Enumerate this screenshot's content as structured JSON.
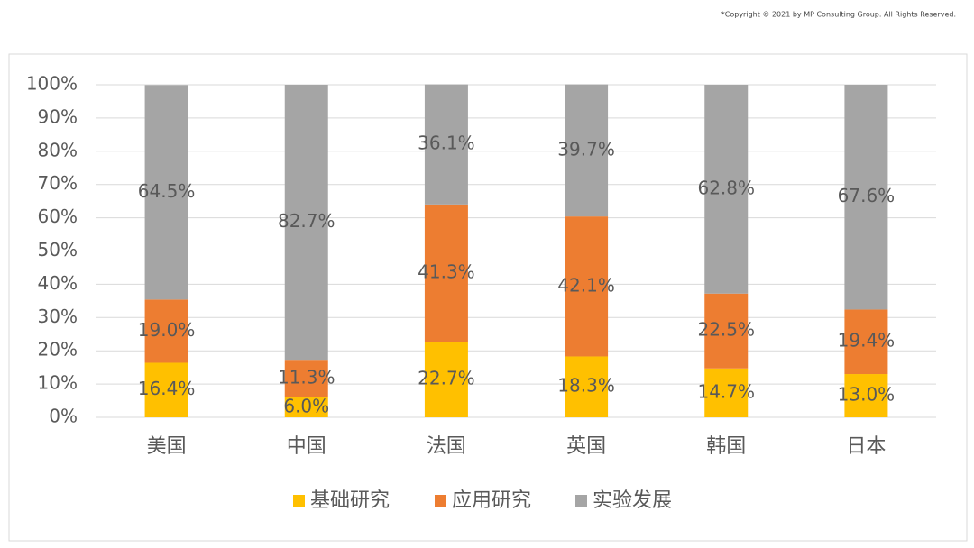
{
  "copyright": "*Copyright © 2021 by MP Consulting Group. All Rights Reserved.",
  "chart_data": {
    "type": "stacked_bar",
    "categories": [
      "美国",
      "中国",
      "法国",
      "英国",
      "韩国",
      "日本"
    ],
    "series": [
      {
        "name": "基础研究",
        "color": "#ffc000",
        "values": [
          16.4,
          6.0,
          22.7,
          18.3,
          14.7,
          13.0
        ],
        "value_labels": [
          "16.4%",
          "6.0%",
          "22.7%",
          "18.3%",
          "14.7%",
          "13.0%"
        ]
      },
      {
        "name": "应用研究",
        "color": "#ed7d31",
        "values": [
          19.0,
          11.3,
          41.3,
          42.1,
          22.5,
          19.4
        ],
        "value_labels": [
          "19.0%",
          "11.3%",
          "41.3%",
          "42.1%",
          "22.5%",
          "19.4%"
        ]
      },
      {
        "name": "实验发展",
        "color": "#a5a5a5",
        "values": [
          64.5,
          82.7,
          36.1,
          39.7,
          62.8,
          67.6
        ],
        "value_labels": [
          "64.5%",
          "82.7%",
          "36.1%",
          "39.7%",
          "62.8%",
          "67.6%"
        ]
      }
    ],
    "ylim": [
      0,
      100
    ],
    "yticks": [
      {
        "value": 0,
        "label": "0%"
      },
      {
        "value": 10,
        "label": "10%"
      },
      {
        "value": 20,
        "label": "20%"
      },
      {
        "value": 30,
        "label": "30%"
      },
      {
        "value": 40,
        "label": "40%"
      },
      {
        "value": 50,
        "label": "50%"
      },
      {
        "value": 60,
        "label": "60%"
      },
      {
        "value": 70,
        "label": "70%"
      },
      {
        "value": 80,
        "label": "80%"
      },
      {
        "value": 90,
        "label": "90%"
      },
      {
        "value": 100,
        "label": "100%"
      }
    ],
    "grid": true,
    "legend": "bottom"
  }
}
